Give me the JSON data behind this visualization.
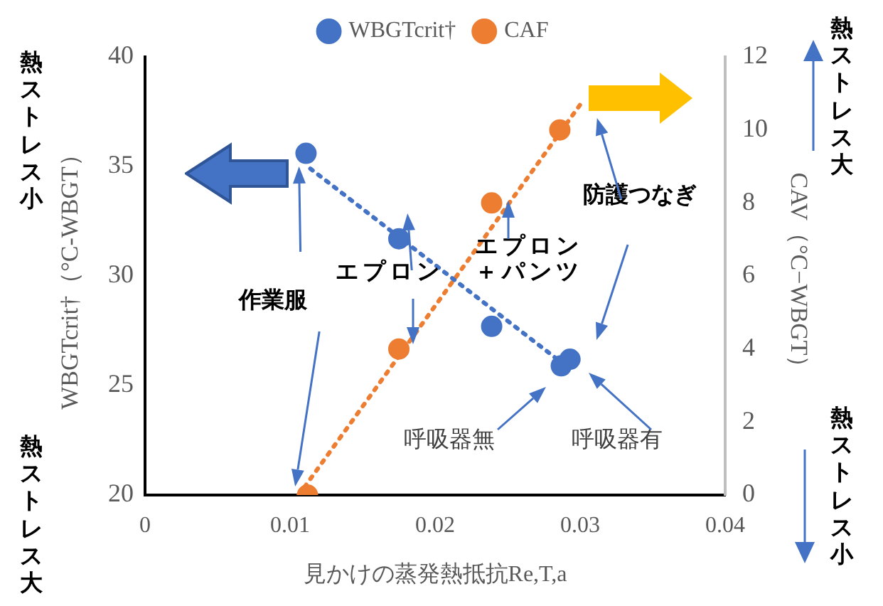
{
  "chart_data": {
    "type": "scatter",
    "xlabel": "見かけの蒸発熱抵抗Re,T,a",
    "ylabel": "WBGTcrit†（°C-WBGT）",
    "y2label": "CAV（°C−WBGT）",
    "xlim": [
      0,
      0.04
    ],
    "xticks": [
      0,
      0.01,
      0.02,
      0.03,
      0.04
    ],
    "ylim": [
      20,
      40
    ],
    "yticks": [
      20,
      25,
      30,
      35,
      40
    ],
    "y2lim": [
      0,
      12
    ],
    "y2ticks": [
      0,
      2,
      4,
      6,
      8,
      10,
      12
    ],
    "legend": "top",
    "marker": "circle",
    "series": [
      {
        "name": "WBGTcrit†",
        "color": "#4472c4",
        "x": [
          0.0111,
          0.0175,
          0.0239,
          0.0287,
          0.0293
        ],
        "values": [
          35.6,
          31.7,
          27.7,
          25.9,
          26.2
        ]
      },
      {
        "name": "CAF",
        "color": "#ed7d31",
        "axis": "y2",
        "x": [
          0.0112,
          0.0175,
          0.0239,
          0.0286
        ],
        "values": [
          0,
          4,
          8,
          10
        ]
      },
      {
        "type": "line",
        "marker": "none",
        "color": "#4472c4",
        "line_style": "dotted",
        "x": [
          0.0114,
          0.0292
        ],
        "values": [
          34.9,
          25.8
        ]
      },
      {
        "type": "line",
        "marker": "none",
        "color": "#ed7d31",
        "line_style": "dotted",
        "axis": "y2",
        "x": [
          0.0106,
          0.0302
        ],
        "values": [
          0,
          10.8
        ]
      }
    ],
    "annotations": [
      "熱ストレス小",
      "熱ストレス大",
      "熱ストレス大",
      "熱ストレス小",
      "作業服",
      "エプロン",
      "エプロン＋パンツ",
      "防護つなぎ",
      "呼吸器無",
      "呼吸器有"
    ]
  }
}
